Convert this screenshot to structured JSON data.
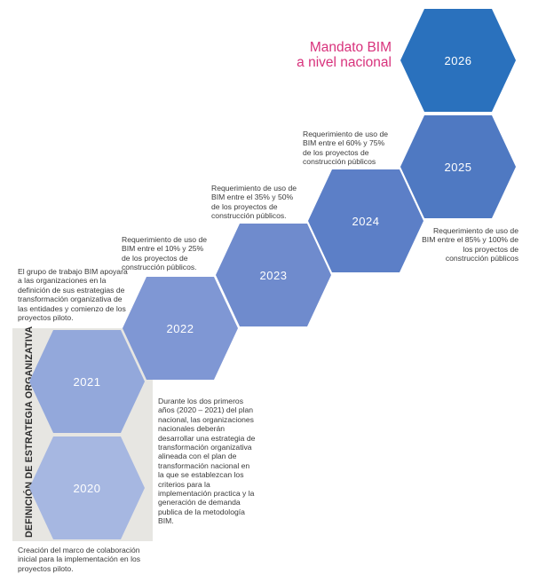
{
  "title": {
    "line1": "Mandato BIM",
    "line2": "a nivel nacional"
  },
  "band_label": "DEFINICIÓN DE ESTRATEGIA ORGANIZATIVA",
  "hexagons": [
    {
      "year": "2020",
      "color": "#a6b7e1"
    },
    {
      "year": "2021",
      "color": "#93a8db"
    },
    {
      "year": "2022",
      "color": "#7f97d4"
    },
    {
      "year": "2023",
      "color": "#6f8bcd"
    },
    {
      "year": "2024",
      "color": "#5c7fc7"
    },
    {
      "year": "2025",
      "color": "#4f79c2"
    },
    {
      "year": "2026",
      "color": "#2a71bd"
    }
  ],
  "notes": {
    "n2020": "Creación del marco de colaboración inicial para la implementación en los proyectos piloto.",
    "n2020_2021": "Durante los dos primeros años (2020 – 2021) del plan nacional, las organizaciones nacionales deberán desarrollar una estrategia de transformación organizativa alineada con el plan de transformación nacional en la que se establezcan los criterios para la implementación practica y la generación de demanda publica de la metodología BIM.",
    "n2021": "El grupo de trabajo BIM apoyara a las organizaciones en la definición de sus estrategias de transformación organizativa de las entidades y comienzo de los proyectos piloto.",
    "n2022": "Requerimiento de uso de BIM entre el 10% y 25% de los proyectos de construcción públicos.",
    "n2023": "Requerimiento de uso de BIM  entre el 35% y 50% de los proyectos de construcción públicos.",
    "n2024": "Requerimiento de uso de BIM  entre el 60% y 75% de los proyectos de construcción públicos",
    "n2025": "Requerimiento de uso de BIM  entre el 85% y 100% de los proyectos de construcción públicos"
  }
}
